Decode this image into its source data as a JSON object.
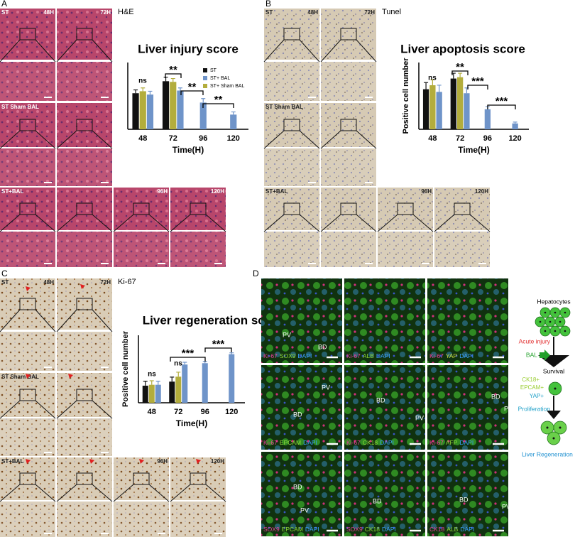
{
  "chart_data": [
    {
      "type": "bar",
      "title": "Liver injury score",
      "xlabel": "Time(H)",
      "categories": [
        "48",
        "72",
        "96",
        "120"
      ],
      "series": [
        {
          "name": "ST",
          "color": "#111111",
          "values": [
            5.4,
            7.2,
            null,
            null
          ],
          "errors": [
            0.5,
            0.6,
            null,
            null
          ]
        },
        {
          "name": "ST+ BAL",
          "color": "#6f94c9",
          "values": [
            5.2,
            5.8,
            4.0,
            2.2
          ],
          "errors": [
            0.5,
            0.4,
            0.6,
            0.4
          ]
        },
        {
          "name": "ST+ Sham BAL",
          "color": "#b3ad3c",
          "values": [
            5.7,
            7.1,
            null,
            null
          ],
          "errors": [
            0.5,
            0.5,
            null,
            null
          ]
        }
      ],
      "ylim": [
        0,
        10
      ],
      "legend": "top-right",
      "annotations": [
        "ns",
        "**",
        "**",
        "**"
      ]
    },
    {
      "type": "bar",
      "title": "Liver apoptosis score",
      "xlabel": "Time(H)",
      "ylabel": "Positive cell number",
      "categories": [
        "48",
        "72",
        "96",
        "120"
      ],
      "series": [
        {
          "name": "ST",
          "color": "#111111",
          "values": [
            15,
            19,
            null,
            null
          ],
          "errors": [
            2.5,
            2,
            null,
            null
          ]
        },
        {
          "name": "ST+ BAL",
          "color": "#6f94c9",
          "values": [
            14,
            13.5,
            7.5,
            2.2
          ],
          "errors": [
            2.5,
            2,
            1,
            0.5
          ]
        },
        {
          "name": "ST+ Sham BAL",
          "color": "#b3ad3c",
          "values": [
            16.5,
            19.5,
            null,
            null
          ],
          "errors": [
            2,
            1.5,
            null,
            null
          ]
        }
      ],
      "ylim": [
        0,
        25
      ],
      "annotations": [
        "ns",
        "**",
        "***",
        "***"
      ]
    },
    {
      "type": "bar",
      "title": "Liver regeneration score",
      "xlabel": "Time(H)",
      "ylabel": "Positive cell number",
      "categories": [
        "48",
        "72",
        "96",
        "120"
      ],
      "series": [
        {
          "name": "ST",
          "color": "#111111",
          "values": [
            38,
            47,
            null,
            null
          ],
          "errors": [
            10,
            10,
            null,
            null
          ]
        },
        {
          "name": "ST+ BAL",
          "color": "#6f94c9",
          "values": [
            40,
            85,
            88,
            108
          ],
          "errors": [
            8,
            5,
            4,
            3
          ]
        },
        {
          "name": "ST+ Sham BAL",
          "color": "#b3ad3c",
          "values": [
            40,
            58,
            null,
            null
          ],
          "errors": [
            9,
            10,
            null,
            null
          ]
        }
      ],
      "ylim": [
        0,
        150
      ],
      "annotations": [
        "ns",
        "***",
        "ns",
        "***"
      ]
    }
  ],
  "panels": {
    "A": {
      "letter": "A",
      "stain": "H&E",
      "labels": [
        "ST",
        "48H",
        "72H",
        "ST Sham BAL",
        "ST+BAL",
        "96H",
        "120H"
      ]
    },
    "B": {
      "letter": "B",
      "stain": "Tunel",
      "labels": [
        "ST",
        "48H",
        "72H",
        "ST Sham BAL",
        "ST+BAL",
        "96H",
        "120H"
      ]
    },
    "C": {
      "letter": "C",
      "stain": "Ki-67",
      "labels": [
        "ST",
        "48H",
        "72H",
        "ST Sham BAL",
        "ST+BAL",
        "96H",
        "120H"
      ]
    },
    "D": {
      "letter": "D",
      "tiles": [
        {
          "markers": [
            {
              "text": "Ki-67",
              "color": "#e83e9a"
            },
            {
              "text": "SOX9",
              "color": "#8fd83a"
            },
            {
              "text": "DAPI",
              "color": "#3aa0ff"
            }
          ],
          "marks": [
            "PV",
            "BD"
          ]
        },
        {
          "markers": [
            {
              "text": "Ki-67",
              "color": "#e83e9a"
            },
            {
              "text": "ALB",
              "color": "#8fd83a"
            },
            {
              "text": "DAPI",
              "color": "#3aa0ff"
            }
          ],
          "marks": []
        },
        {
          "markers": [
            {
              "text": "Ki-67",
              "color": "#e83e9a"
            },
            {
              "text": "YAP",
              "color": "#c8d83a"
            },
            {
              "text": "DAPI",
              "color": "#3aa0ff"
            }
          ],
          "marks": []
        },
        {
          "markers": [
            {
              "text": "Ki-67",
              "color": "#e83e9a"
            },
            {
              "text": "EPCAM",
              "color": "#8fd83a"
            },
            {
              "text": "DAPI",
              "color": "#3aa0ff"
            }
          ],
          "marks": [
            "PV",
            "BD"
          ]
        },
        {
          "markers": [
            {
              "text": "Ki-67",
              "color": "#e83e9a"
            },
            {
              "text": "CK18",
              "color": "#8fd83a"
            },
            {
              "text": "DAPI",
              "color": "#3aa0ff"
            }
          ],
          "marks": [
            "BD",
            "PV"
          ]
        },
        {
          "markers": [
            {
              "text": "Ki-67",
              "color": "#e83e9a"
            },
            {
              "text": "AFP",
              "color": "#8fd83a"
            },
            {
              "text": "DAPI",
              "color": "#3aa0ff"
            }
          ],
          "marks": [
            "BD",
            "PV"
          ]
        },
        {
          "markers": [
            {
              "text": "SOX9",
              "color": "#e83e9a"
            },
            {
              "text": "EPCAM",
              "color": "#8fd83a"
            },
            {
              "text": "DAPI",
              "color": "#3aa0ff"
            }
          ],
          "marks": [
            "BD",
            "PV"
          ]
        },
        {
          "markers": [
            {
              "text": "SOX9",
              "color": "#e83e9a"
            },
            {
              "text": "CK18",
              "color": "#8fd83a"
            },
            {
              "text": "DAPI",
              "color": "#3aa0ff"
            }
          ],
          "marks": [
            "BD"
          ]
        },
        {
          "markers": [
            {
              "text": "CK18",
              "color": "#e83e9a"
            },
            {
              "text": "ALB",
              "color": "#8fd83a"
            },
            {
              "text": "DAPI",
              "color": "#3aa0ff"
            }
          ],
          "marks": [
            "BD",
            "PV"
          ]
        }
      ],
      "diagram": {
        "hepatocytes": "Hepatocytes",
        "injury": "Acute injury",
        "bal": "BAL",
        "survival": "Survival",
        "ck18": "CK18+",
        "epcam": "EPCAM+",
        "yap": "YAP+",
        "proliferation": "Proliferation",
        "regeneration": "Liver Regeneration"
      }
    }
  }
}
